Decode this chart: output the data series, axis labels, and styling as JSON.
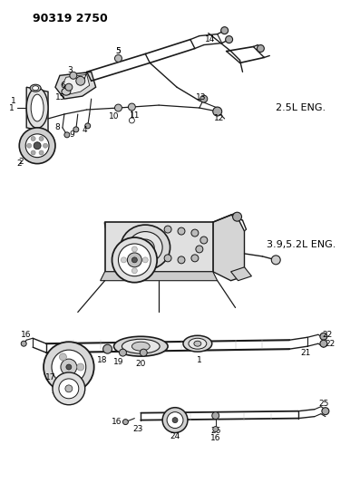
{
  "title": "90319 2750",
  "bg_color": "#ffffff",
  "line_color": "#1a1a1a",
  "label_color": "#000000",
  "label_25L": "2.5L ENG.",
  "label_392L": "3.9,5.2L ENG.",
  "lfs": 6.5,
  "title_fs": 9
}
